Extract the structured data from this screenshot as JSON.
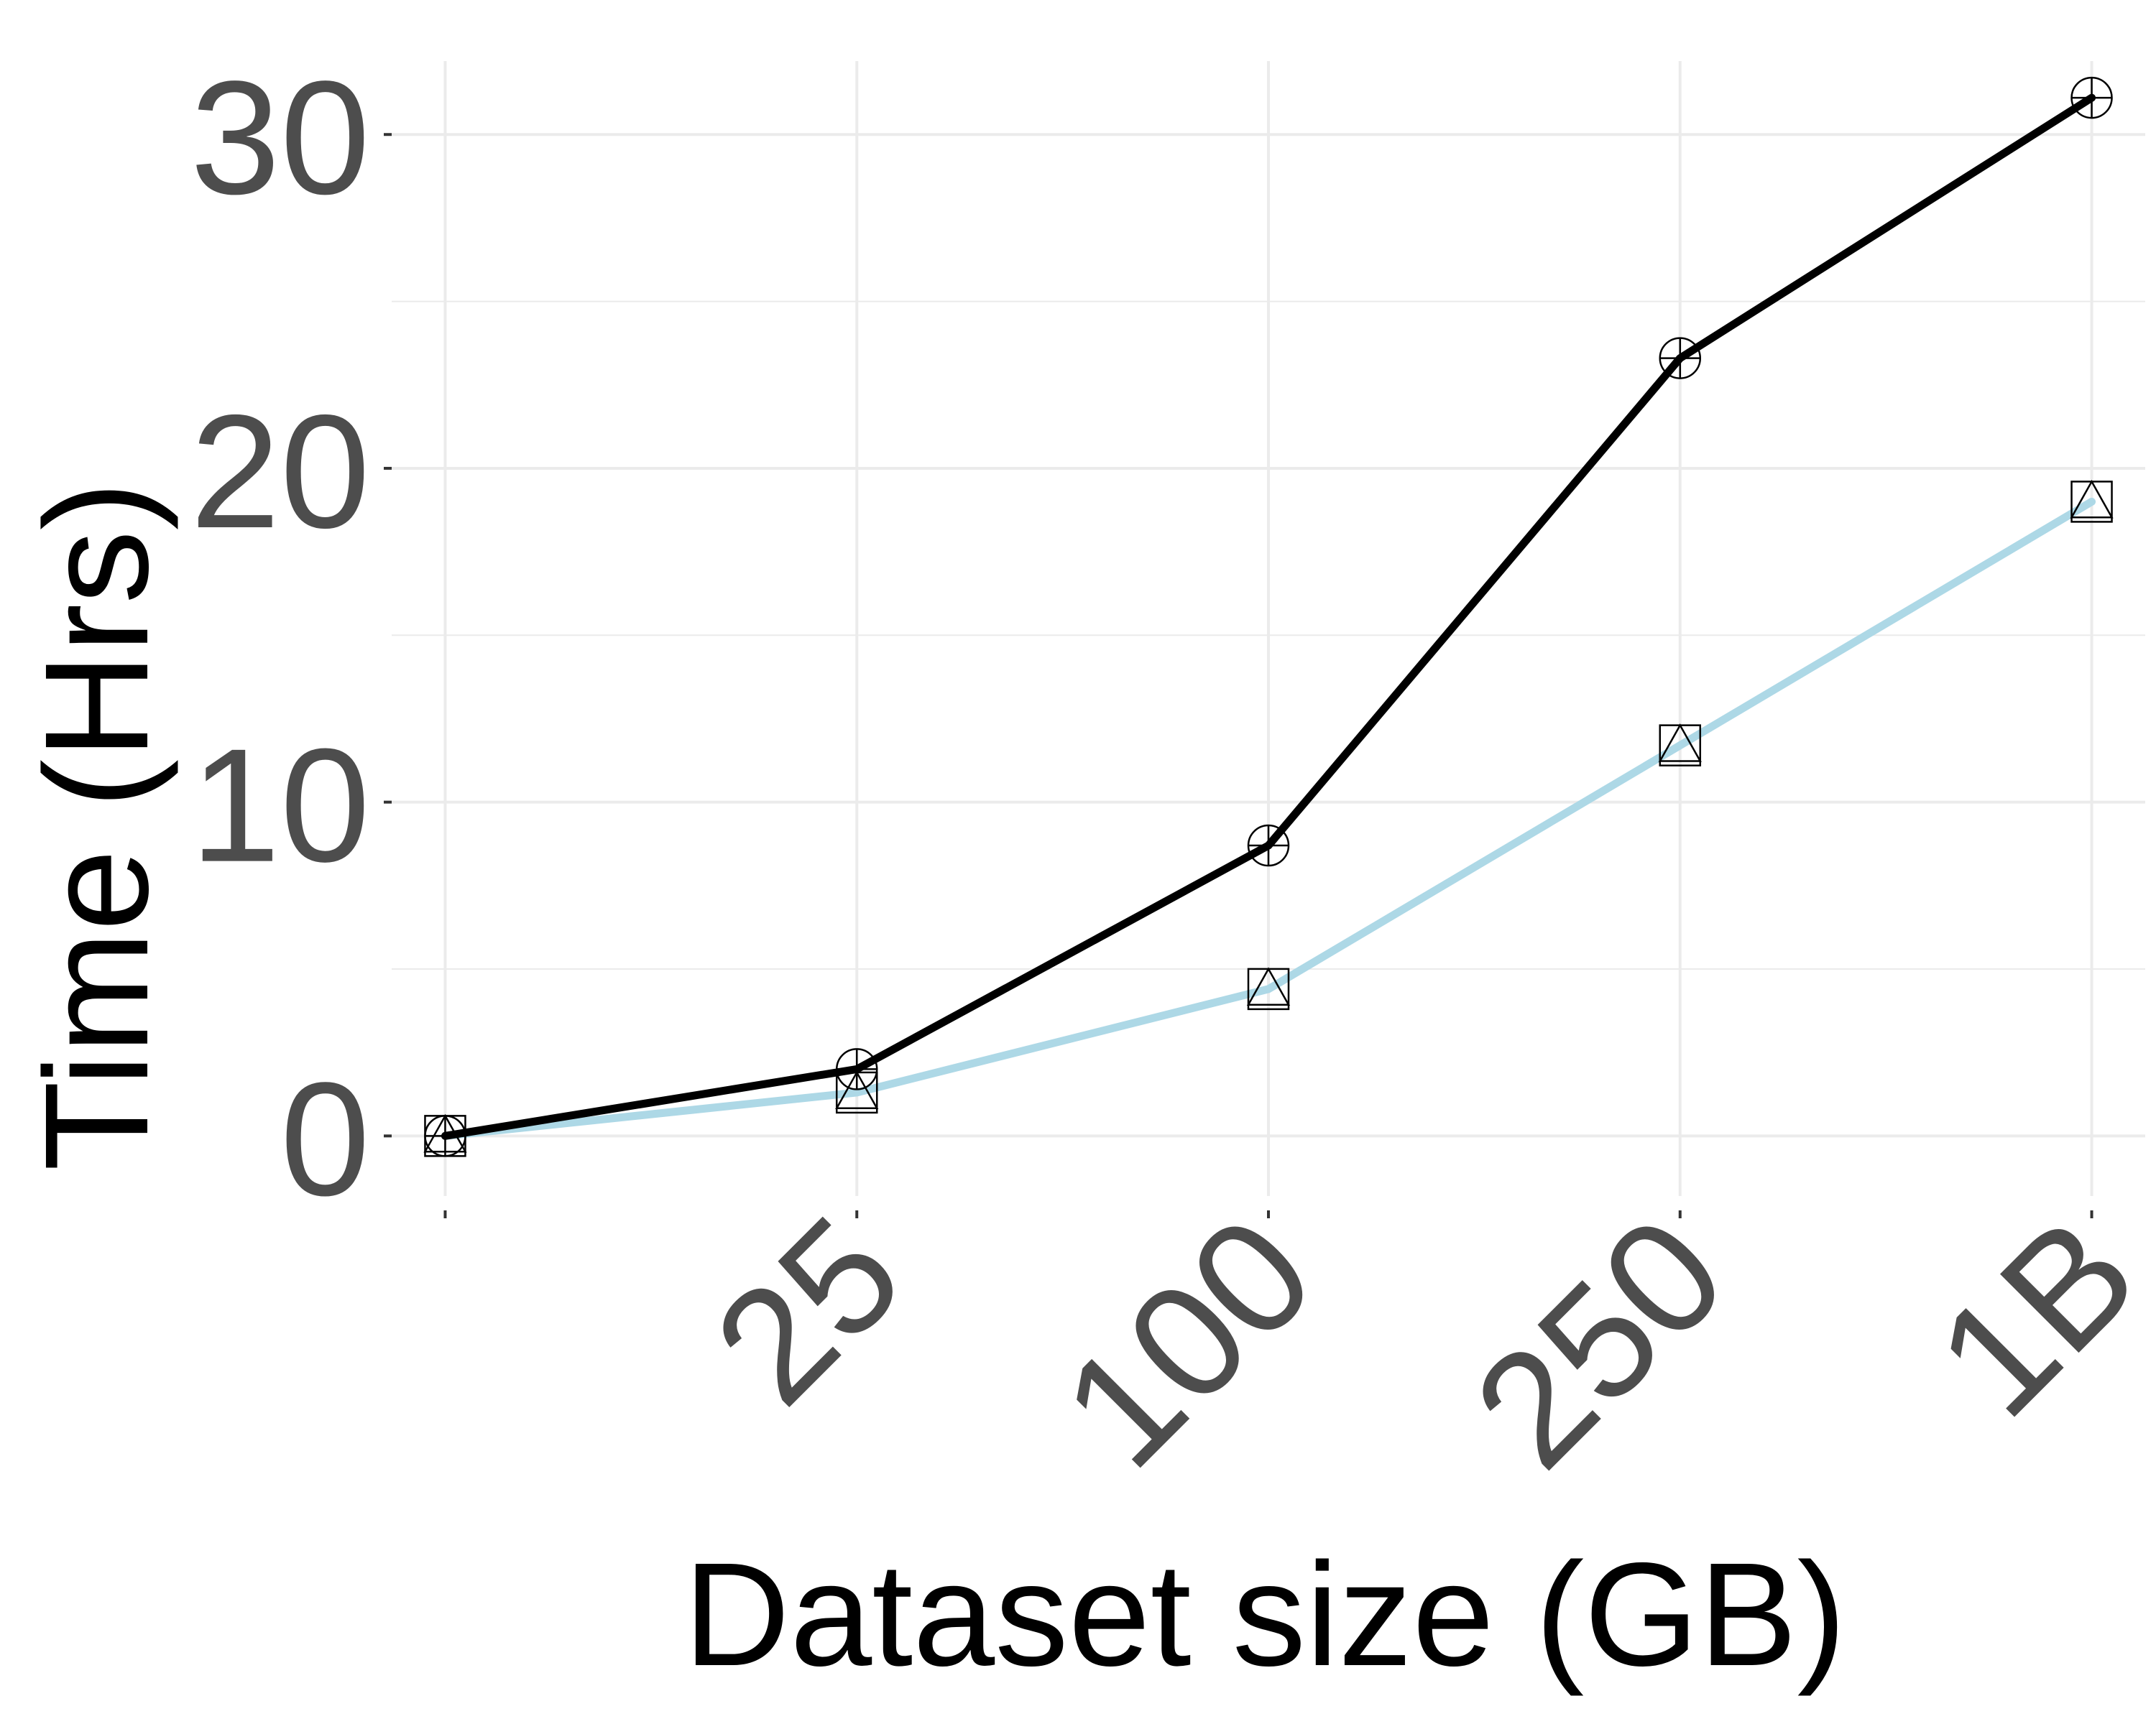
{
  "chart_data": {
    "type": "line",
    "xlabel": "Dataset size (GB)",
    "ylabel": "Time (Hrs)",
    "categories": [
      "",
      "25",
      "100",
      "250",
      "1B"
    ],
    "ylim": [
      -1.8,
      32.2
    ],
    "yticks": [
      0,
      10,
      20,
      30
    ],
    "grid": true,
    "legend": "none",
    "series": [
      {
        "values": [
          0.0,
          2.0,
          8.7,
          23.3,
          31.1
        ],
        "color": "#000000",
        "markers": [
          "circle",
          "plus"
        ]
      },
      {
        "values": [
          0.0,
          1.3,
          4.4,
          11.7,
          19.0
        ],
        "color": "#add8e6",
        "markers": [
          "square",
          "triangle"
        ]
      }
    ]
  }
}
